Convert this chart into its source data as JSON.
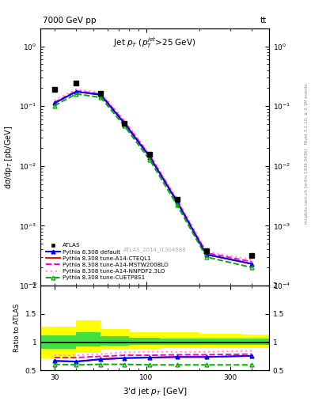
{
  "title_main": "Jet $p_T$ ($p_T^{jet}$>25 GeV)",
  "top_left_label": "7000 GeV pp",
  "top_right_label": "tt",
  "right_label": "mcplots.cern.ch [arXiv:1306.3436]   Rivet 3.1.10; ≥ 3.1M events",
  "watermark": "ATLAS_2014_I1304688",
  "ylabel_main": "dσ/dp$_T$ [pb/GeV]",
  "ylabel_ratio": "Ratio to ATLAS",
  "xlabel": "3'd jet $p_T$ [GeV]",
  "xlim": [
    25,
    500
  ],
  "ylim_main": [
    0.0001,
    2.0
  ],
  "ylim_ratio": [
    0.5,
    2.0
  ],
  "x_data": [
    30,
    40,
    55,
    75,
    105,
    150,
    220,
    400
  ],
  "atlas_y": [
    0.19,
    0.24,
    0.165,
    0.052,
    0.0155,
    0.0028,
    0.00038,
    0.00032
  ],
  "pythia_default_y": [
    0.112,
    0.175,
    0.155,
    0.052,
    0.014,
    0.0025,
    0.00033,
    0.00023
  ],
  "pythia_cteql1_y": [
    0.112,
    0.175,
    0.155,
    0.052,
    0.014,
    0.0025,
    0.00033,
    0.00023
  ],
  "pythia_mstw_y": [
    0.115,
    0.18,
    0.16,
    0.055,
    0.0148,
    0.0026,
    0.00035,
    0.00025
  ],
  "pythia_nnpdf_y": [
    0.125,
    0.192,
    0.17,
    0.058,
    0.0155,
    0.0028,
    0.00037,
    0.00027
  ],
  "pythia_cuetp_y": [
    0.102,
    0.16,
    0.14,
    0.047,
    0.0125,
    0.0022,
    0.0003,
    0.0002
  ],
  "ratio_x": [
    30,
    40,
    55,
    75,
    105,
    150,
    220,
    400
  ],
  "ratio_default": [
    0.67,
    0.66,
    0.7,
    0.72,
    0.73,
    0.74,
    0.74,
    0.76
  ],
  "ratio_cteql1": [
    0.67,
    0.66,
    0.7,
    0.72,
    0.73,
    0.74,
    0.74,
    0.76
  ],
  "ratio_mstw": [
    0.73,
    0.73,
    0.75,
    0.77,
    0.77,
    0.78,
    0.78,
    0.79
  ],
  "ratio_nnpdf": [
    0.77,
    0.77,
    0.79,
    0.82,
    0.83,
    0.83,
    0.83,
    0.85
  ],
  "ratio_cuetp": [
    0.61,
    0.6,
    0.61,
    0.61,
    0.6,
    0.6,
    0.6,
    0.6
  ],
  "band_x_edges": [
    25,
    40,
    55,
    80,
    120,
    200,
    350,
    500
  ],
  "band_yellow_lo": [
    0.72,
    0.82,
    0.87,
    0.89,
    0.9,
    0.9,
    0.9,
    0.9
  ],
  "band_yellow_hi": [
    1.28,
    1.38,
    1.23,
    1.18,
    1.17,
    1.15,
    1.14,
    1.14
  ],
  "band_green_lo": [
    0.88,
    0.92,
    0.94,
    0.95,
    0.95,
    0.96,
    0.96,
    0.96
  ],
  "band_green_hi": [
    1.12,
    1.18,
    1.1,
    1.08,
    1.07,
    1.06,
    1.06,
    1.06
  ],
  "color_default": "#0000ff",
  "color_cteql1": "#ff0000",
  "color_mstw": "#ff00bb",
  "color_nnpdf": "#ff99dd",
  "color_cuetp": "#00aa00",
  "color_atlas": "#000000",
  "color_band_yellow": "#ffff00",
  "color_band_green": "#44dd44",
  "bg_color": "#ffffff"
}
